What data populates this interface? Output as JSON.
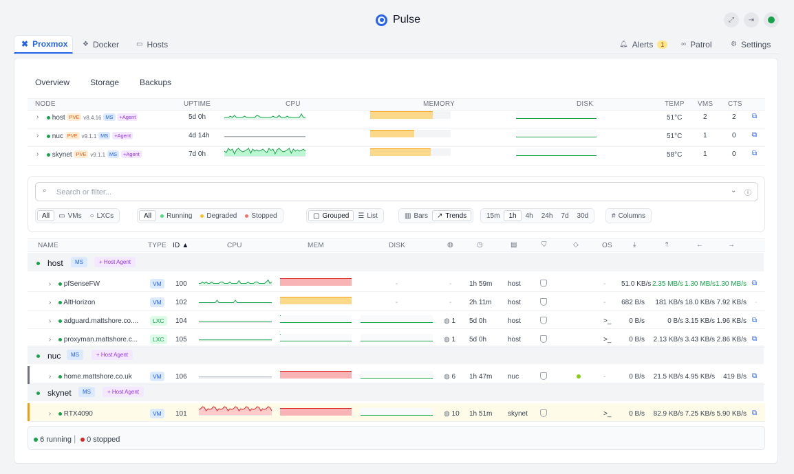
{
  "app": {
    "title": "Pulse"
  },
  "tabs": [
    {
      "label": "Proxmox"
    },
    {
      "label": "Docker"
    },
    {
      "label": "Hosts"
    }
  ],
  "right_tabs": {
    "alerts": "Alerts",
    "alerts_count": "1",
    "patrol": "Patrol",
    "settings": "Settings"
  },
  "subtabs": [
    "Overview",
    "Storage",
    "Backups"
  ],
  "node_table": {
    "headers": [
      "NODE",
      "UPTIME",
      "CPU",
      "MEMORY",
      "DISK",
      "TEMP",
      "VMS",
      "CTS"
    ],
    "rows": [
      {
        "name": "host",
        "pve": "PVE",
        "version": "v8.4.16",
        "ms": "MS",
        "agent": "+Agent",
        "uptime": "5d 0h",
        "temp": "51°C",
        "vms": "2",
        "cts": "2",
        "mem": 0.78,
        "disk": 0.12
      },
      {
        "name": "nuc",
        "pve": "PVE",
        "version": "v9.1.1",
        "ms": "MS",
        "agent": "+Agent",
        "uptime": "4d 14h",
        "temp": "51°C",
        "vms": "1",
        "cts": "0",
        "mem": 0.55,
        "disk": 0.12
      },
      {
        "name": "skynet",
        "pve": "PVE",
        "version": "v9.1.1",
        "ms": "MS",
        "agent": "+Agent",
        "uptime": "7d 0h",
        "temp": "58°C",
        "vms": "1",
        "cts": "0",
        "mem": 0.75,
        "disk": 0.12
      }
    ]
  },
  "search": {
    "placeholder": "Search or filter..."
  },
  "filters": {
    "type": [
      "All",
      "VMs",
      "LXCs"
    ],
    "status": [
      "All",
      "Running",
      "Degraded",
      "Stopped"
    ],
    "group": [
      "Grouped",
      "List"
    ],
    "view": [
      "Bars",
      "Trends"
    ],
    "range": [
      "15m",
      "1h",
      "4h",
      "24h",
      "7d",
      "30d"
    ],
    "columns": "Columns"
  },
  "guest_table": {
    "headers": {
      "name": "NAME",
      "type": "TYPE",
      "id": "ID ▲",
      "cpu": "CPU",
      "mem": "MEM",
      "disk": "DISK",
      "os": "OS"
    },
    "groups": [
      {
        "name": "host",
        "ms": "MS",
        "agent": "+ Host Agent"
      },
      {
        "name": "nuc",
        "ms": "MS",
        "agent": "+ Host Agent"
      },
      {
        "name": "skynet",
        "ms": "MS",
        "agent": "+ Host Agent"
      }
    ],
    "rows": [
      {
        "name": "pfSenseFW",
        "type": "VM",
        "id": "100",
        "disk": "-",
        "ip": "-",
        "ipcount": "",
        "uptime": "1h 59m",
        "node": "host",
        "os": "-",
        "c1": "51.0 KB/s",
        "c2": "2.35 MB/s",
        "c3": "1.30 MB/s",
        "c4": "1.30 MB/s"
      },
      {
        "name": "AltHorizon",
        "type": "VM",
        "id": "102",
        "disk": "-",
        "ip": "-",
        "ipcount": "",
        "uptime": "2h 11m",
        "node": "host",
        "os": "-",
        "c1": "682 B/s",
        "c2": "181 KB/s",
        "c3": "18.0 KB/s",
        "c4": "7.92 KB/s"
      },
      {
        "name": "adguard.mattshore.co....",
        "type": "LXC",
        "id": "104",
        "disk": "",
        "ip": "",
        "ipcount": "1",
        "uptime": "5d 0h",
        "node": "host",
        "os": ">_",
        "c1": "0 B/s",
        "c2": "0 B/s",
        "c3": "3.15 KB/s",
        "c4": "1.96 KB/s"
      },
      {
        "name": "proxyman.mattshore.c...",
        "type": "LXC",
        "id": "105",
        "disk": "",
        "ip": "",
        "ipcount": "1",
        "uptime": "5d 0h",
        "node": "host",
        "os": ">_",
        "c1": "0 B/s",
        "c2": "2.13 KB/s",
        "c3": "3.43 KB/s",
        "c4": "2.86 KB/s"
      },
      {
        "name": "home.mattshore.co.uk",
        "type": "VM",
        "id": "106",
        "disk": "",
        "ip": "",
        "ipcount": "6",
        "uptime": "1h 47m",
        "node": "nuc",
        "os": "-",
        "c1": "0 B/s",
        "c2": "21.5 KB/s",
        "c3": "4.95 KB/s",
        "c4": "419 B/s"
      },
      {
        "name": "RTX4090",
        "type": "VM",
        "id": "101",
        "disk": "",
        "ip": "",
        "ipcount": "10",
        "uptime": "1h 51m",
        "node": "skynet",
        "os": ">_",
        "c1": "0 B/s",
        "c2": "82.9 KB/s",
        "c3": "7.25 KB/s",
        "c4": "5.90 KB/s"
      }
    ]
  },
  "footer": {
    "running": "6 running",
    "stopped": "0 stopped"
  },
  "colors": {
    "accent": "#2563eb",
    "green": "#16a34a",
    "red": "#dc2626",
    "amber": "#f59e0b"
  }
}
